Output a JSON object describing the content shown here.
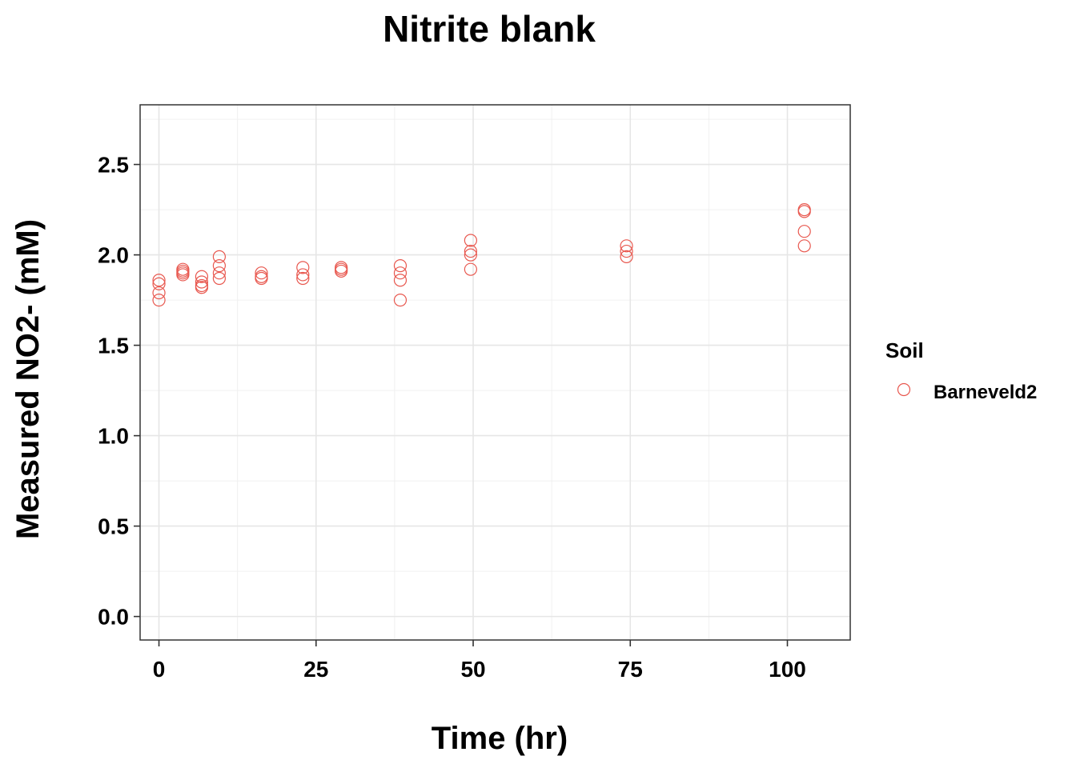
{
  "chart_data": {
    "type": "scatter",
    "title": "Nitrite blank",
    "xlabel": "Time (hr)",
    "ylabel": "Measured NO2- (mM)",
    "xlim": [
      -3,
      110
    ],
    "ylim": [
      -0.13,
      2.83
    ],
    "x_ticks": [
      0,
      25,
      50,
      75,
      100
    ],
    "x_tick_labels": [
      "0",
      "25",
      "50",
      "75",
      "100"
    ],
    "x_minor_ticks": [
      12.5,
      37.5,
      62.5,
      87.5
    ],
    "y_ticks": [
      0.0,
      0.5,
      1.0,
      1.5,
      2.0,
      2.5
    ],
    "y_tick_labels": [
      "0.0",
      "0.5",
      "1.0",
      "1.5",
      "2.0",
      "2.5"
    ],
    "y_minor_ticks": [
      0.25,
      0.75,
      1.25,
      1.75,
      2.25,
      2.75
    ],
    "grid": true,
    "legend": {
      "title": "Soil",
      "position": "right"
    },
    "series": [
      {
        "name": "Barneveld2",
        "color": "#E8574E",
        "marker": "open-circle",
        "points": [
          [
            0,
            1.86
          ],
          [
            0,
            1.84
          ],
          [
            0,
            1.79
          ],
          [
            0,
            1.75
          ],
          [
            3.8,
            1.92
          ],
          [
            3.8,
            1.91
          ],
          [
            3.8,
            1.9
          ],
          [
            3.8,
            1.89
          ],
          [
            6.8,
            1.88
          ],
          [
            6.8,
            1.85
          ],
          [
            6.8,
            1.83
          ],
          [
            6.8,
            1.82
          ],
          [
            9.6,
            1.99
          ],
          [
            9.6,
            1.94
          ],
          [
            9.6,
            1.9
          ],
          [
            9.6,
            1.87
          ],
          [
            16.3,
            1.9
          ],
          [
            16.3,
            1.88
          ],
          [
            16.3,
            1.87
          ],
          [
            22.9,
            1.93
          ],
          [
            22.9,
            1.89
          ],
          [
            22.9,
            1.87
          ],
          [
            29.0,
            1.93
          ],
          [
            29.0,
            1.92
          ],
          [
            29.0,
            1.91
          ],
          [
            38.4,
            1.94
          ],
          [
            38.4,
            1.9
          ],
          [
            38.4,
            1.86
          ],
          [
            38.4,
            1.75
          ],
          [
            49.6,
            2.08
          ],
          [
            49.6,
            2.02
          ],
          [
            49.6,
            2.0
          ],
          [
            49.6,
            1.92
          ],
          [
            74.4,
            2.05
          ],
          [
            74.4,
            2.02
          ],
          [
            74.4,
            1.99
          ],
          [
            102.7,
            2.25
          ],
          [
            102.7,
            2.24
          ],
          [
            102.7,
            2.13
          ],
          [
            102.7,
            2.05
          ]
        ]
      }
    ]
  }
}
